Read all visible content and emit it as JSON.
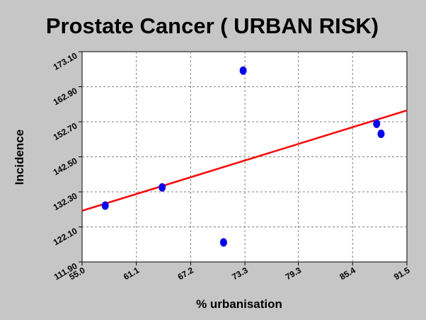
{
  "chart_data": {
    "type": "scatter",
    "title": "Prostate Cancer ( URBAN RISK)",
    "xlabel": "% urbanisation",
    "ylabel": "Incidence",
    "xlim": [
      55.0,
      91.5
    ],
    "ylim": [
      111.9,
      173.1
    ],
    "x_ticks": [
      "55.0",
      "61.1",
      "67.2",
      "73.3",
      "79.3",
      "85.4",
      "91.5"
    ],
    "y_ticks": [
      "111.90",
      "122.10",
      "132.30",
      "142.50",
      "152.70",
      "162.90",
      "173.10"
    ],
    "grid": true,
    "points": [
      {
        "x": 57.6,
        "y": 128.3
      },
      {
        "x": 64.0,
        "y": 133.6
      },
      {
        "x": 70.9,
        "y": 117.6
      },
      {
        "x": 73.1,
        "y": 167.6
      },
      {
        "x": 88.1,
        "y": 152.1
      },
      {
        "x": 88.6,
        "y": 149.2
      }
    ],
    "trendline": {
      "x": [
        55.0,
        91.5
      ],
      "y": [
        126.8,
        156.0
      ]
    },
    "colors": {
      "background": "#c6c6c6",
      "plot_area": "#ffffff",
      "points": "#0000ff",
      "trendline": "#ff0000",
      "grid": "#808080"
    }
  }
}
